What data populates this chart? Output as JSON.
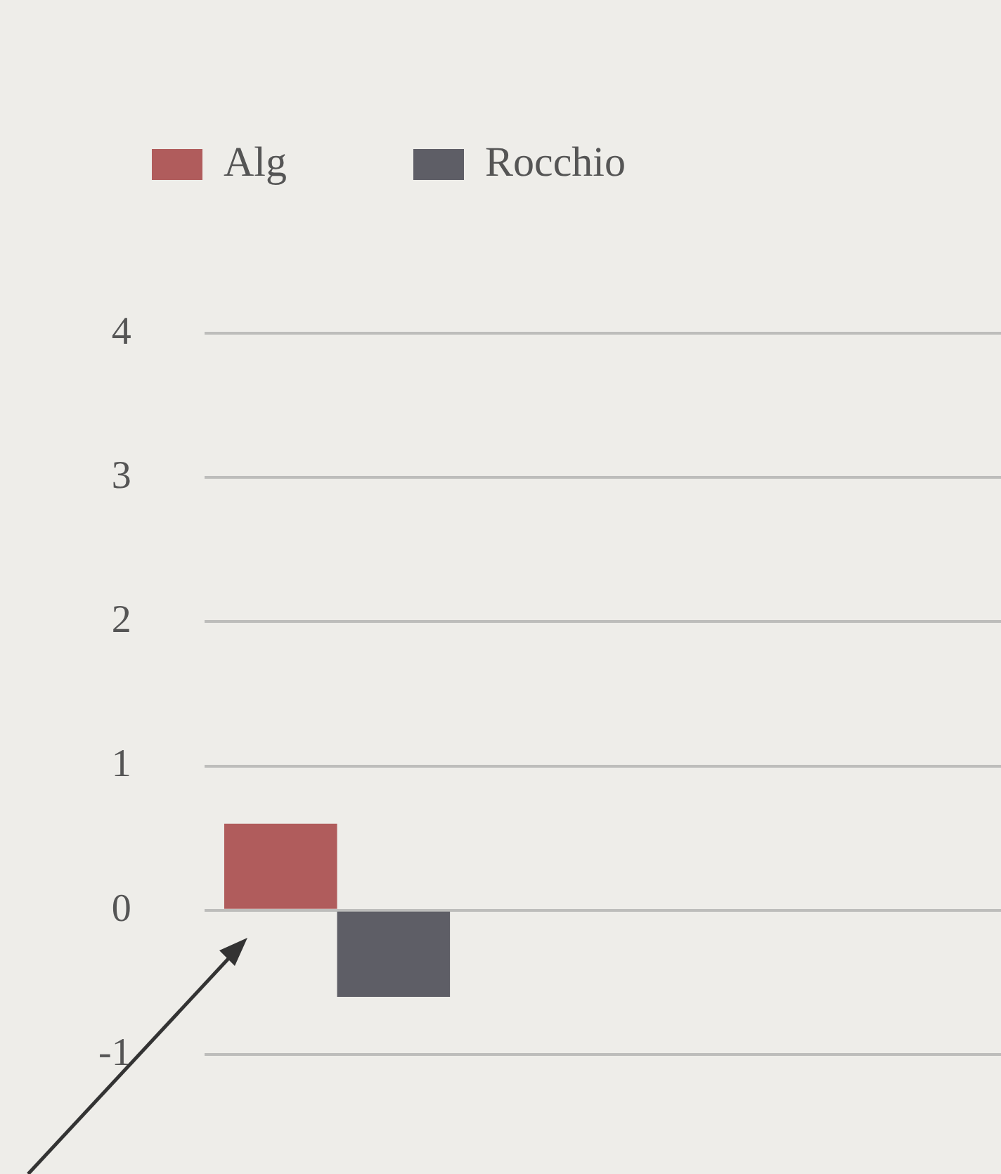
{
  "chart_data": {
    "type": "bar",
    "categories": [
      null,
      null,
      null
    ],
    "series": [
      {
        "name": "Alg",
        "color": "#b05c5c",
        "values": [
          0.6,
          null,
          null
        ]
      },
      {
        "name": "Rocchio",
        "color": "#5e5e66",
        "values": [
          -0.6,
          null,
          null
        ]
      }
    ],
    "ylim": [
      -1,
      4
    ],
    "yticks": [
      -1,
      0,
      1,
      2,
      3,
      4
    ],
    "grid": "y",
    "legend": "top left"
  }
}
